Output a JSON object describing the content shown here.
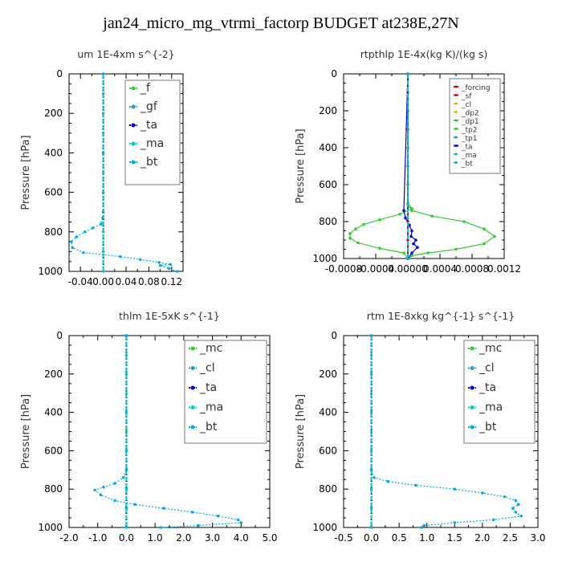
{
  "page_title": "jan24_micro_mg_vtrmi_factorp  BUDGET at238E,27N",
  "chart_data": [
    {
      "type": "line",
      "title": "um  1E-4xm s^{-2}",
      "ylabel": "Pressure [hPa]",
      "xlim": [
        -0.06,
        0.14
      ],
      "ylim": [
        1000,
        0
      ],
      "x_ticks": [
        "-0.04",
        "0.00",
        "0.04",
        "0.08",
        "0.12"
      ],
      "x_tick_values": [
        -0.04,
        0.0,
        0.04,
        0.08,
        0.12
      ],
      "y_ticks": [
        "0",
        "200",
        "400",
        "600",
        "800",
        "1000"
      ],
      "legend_position": "top-right",
      "legend_size": "large",
      "series": [
        {
          "name": "_f",
          "color": "#33cc33",
          "style": "dotted",
          "x": [
            0,
            0,
            0,
            0,
            0,
            0,
            0,
            0,
            0,
            0,
            0
          ],
          "y": [
            0,
            100,
            200,
            300,
            400,
            500,
            600,
            700,
            800,
            900,
            1000
          ]
        },
        {
          "name": "_gf",
          "color": "#3399cc",
          "style": "dotted",
          "x": [
            0,
            0,
            0,
            0,
            0,
            0,
            0,
            0,
            0,
            0,
            0
          ],
          "y": [
            0,
            100,
            200,
            300,
            400,
            500,
            600,
            700,
            800,
            900,
            1000
          ]
        },
        {
          "name": "_ta",
          "color": "#0000dd",
          "style": "dotted",
          "x": [
            0,
            0,
            0,
            0,
            0,
            0,
            0
          ],
          "y": [
            0,
            200,
            400,
            600,
            800,
            900,
            1000
          ]
        },
        {
          "name": "_ma",
          "color": "#00cccc",
          "style": "dash",
          "x": [
            0,
            0,
            0,
            0,
            0,
            0,
            0
          ],
          "y": [
            0,
            200,
            400,
            600,
            800,
            900,
            1000
          ]
        },
        {
          "name": "_bt",
          "color": "#00aaee",
          "style": "dotted",
          "x": [
            0,
            0,
            0,
            -0.001,
            -0.004,
            -0.018,
            -0.032,
            -0.047,
            -0.056,
            -0.054,
            -0.035,
            0.03,
            0.065,
            0.098,
            0.118,
            0.1,
            0.115,
            0.13
          ],
          "y": [
            0,
            400,
            700,
            730,
            760,
            780,
            800,
            825,
            850,
            880,
            905,
            925,
            940,
            955,
            965,
            970,
            985,
            1000
          ]
        }
      ]
    },
    {
      "type": "line",
      "title": "rtpthlp  1E-4x(kg K)/(kg s)",
      "ylabel": "Pressure [hPa]",
      "xlim": [
        -0.0008,
        0.0012
      ],
      "ylim": [
        1000,
        0
      ],
      "x_ticks": [
        "-0.0008",
        "-0.0004",
        "0.00000",
        "0.0004",
        "0.0008",
        "0.0012"
      ],
      "x_tick_values": [
        -0.0008,
        -0.0004,
        0.0,
        0.0004,
        0.0008,
        0.0012
      ],
      "y_ticks": [
        "0",
        "200",
        "400",
        "600",
        "800",
        "1000"
      ],
      "legend_position": "top-right",
      "legend_size": "small",
      "series": [
        {
          "name": "_forcing",
          "color": "#dd0000",
          "style": "solid",
          "x": [
            0,
            0,
            0,
            0,
            0,
            0,
            0,
            0,
            0,
            0,
            0
          ],
          "y": [
            0,
            100,
            200,
            300,
            400,
            500,
            600,
            700,
            800,
            900,
            1000
          ]
        },
        {
          "name": "_sf",
          "color": "#dd0000",
          "style": "solid",
          "x": [
            0,
            0,
            0,
            0,
            0,
            0,
            0,
            0,
            0,
            0,
            0
          ],
          "y": [
            0,
            100,
            200,
            300,
            400,
            500,
            600,
            700,
            800,
            900,
            1000
          ]
        },
        {
          "name": "_cl",
          "color": "#e8b000",
          "style": "dotted",
          "x": [
            0,
            0,
            0
          ],
          "y": [
            0,
            500,
            1000
          ]
        },
        {
          "name": "_dp2",
          "color": "#e8b000",
          "style": "dotted",
          "x": [
            0,
            0,
            0
          ],
          "y": [
            0,
            500,
            1000
          ]
        },
        {
          "name": "_dp1",
          "color": "#33cc33",
          "style": "solid",
          "x": [
            0,
            0,
            5e-05,
            -0.0001,
            -0.00035,
            -0.00055,
            -0.00065,
            -0.00072,
            -0.00072,
            -0.00062,
            -0.00035,
            -5e-05,
            0
          ],
          "y": [
            0,
            700,
            730,
            760,
            790,
            815,
            840,
            865,
            890,
            915,
            945,
            970,
            1000
          ]
        },
        {
          "name": "_tp2",
          "color": "#33cc33",
          "style": "solid",
          "x": [
            0,
            0,
            5e-05,
            0.0003,
            0.0007,
            0.00095,
            0.00108,
            0.00095,
            0.0006,
            0.00025,
            5e-05,
            0
          ],
          "y": [
            0,
            710,
            740,
            770,
            800,
            840,
            880,
            920,
            950,
            970,
            985,
            1000
          ]
        },
        {
          "name": "_tp1",
          "color": "#3399cc",
          "style": "dotted",
          "x": [
            0,
            0,
            0
          ],
          "y": [
            0,
            500,
            1000
          ]
        },
        {
          "name": "_ta",
          "color": "#0000dd",
          "style": "solid",
          "x": [
            0,
            -5e-05,
            -3e-05,
            2e-05,
            5e-05,
            4e-05,
            0.0001,
            7e-05,
            0.00012,
            5e-05,
            0
          ],
          "y": [
            0,
            740,
            780,
            820,
            850,
            880,
            900,
            920,
            940,
            970,
            1000
          ]
        },
        {
          "name": "_ma",
          "color": "#00cccc",
          "style": "dash",
          "x": [
            0,
            0,
            0
          ],
          "y": [
            0,
            500,
            1000
          ]
        },
        {
          "name": "_bt",
          "color": "#00aaee",
          "style": "dotted",
          "x": [
            0,
            0,
            0
          ],
          "y": [
            0,
            500,
            1000
          ]
        }
      ]
    },
    {
      "type": "line",
      "title": "thlm  1E-5xK s^{-1}",
      "ylabel": "Pressure [hPa]",
      "xlim": [
        -2.0,
        5.0
      ],
      "ylim": [
        1000,
        0
      ],
      "x_ticks": [
        "-2.0",
        "-1.0",
        "0.0",
        "1.0",
        "2.0",
        "3.0",
        "4.0",
        "5.0"
      ],
      "x_tick_values": [
        -2.0,
        -1.0,
        0.0,
        1.0,
        2.0,
        3.0,
        4.0,
        5.0
      ],
      "y_ticks": [
        "0",
        "200",
        "400",
        "600",
        "800",
        "1000"
      ],
      "legend_position": "top-right",
      "legend_size": "large",
      "series": [
        {
          "name": "_mc",
          "color": "#33cc33",
          "style": "dotted",
          "x": [
            0,
            0,
            0,
            0,
            0,
            0,
            0,
            0,
            0,
            0,
            0
          ],
          "y": [
            0,
            100,
            200,
            300,
            400,
            500,
            600,
            700,
            800,
            900,
            1000
          ]
        },
        {
          "name": "_cl",
          "color": "#3399cc",
          "style": "dotted",
          "x": [
            0,
            0,
            0,
            0,
            0,
            0,
            0
          ],
          "y": [
            0,
            200,
            400,
            600,
            800,
            900,
            1000
          ]
        },
        {
          "name": "_ta",
          "color": "#0000dd",
          "style": "dotted",
          "x": [
            0,
            0,
            0,
            0,
            0,
            0,
            0
          ],
          "y": [
            0,
            200,
            400,
            600,
            800,
            900,
            1000
          ]
        },
        {
          "name": "_ma",
          "color": "#00cccc",
          "style": "dash",
          "x": [
            0,
            0,
            0,
            0,
            0,
            0,
            0
          ],
          "y": [
            0,
            200,
            400,
            600,
            800,
            900,
            1000
          ]
        },
        {
          "name": "_bt",
          "color": "#00aaee",
          "style": "dotted",
          "x": [
            0,
            0,
            -0.1,
            -0.4,
            -0.8,
            -1.1,
            -0.9,
            -0.4,
            0.3,
            1.3,
            2.3,
            3.2,
            3.9,
            4.0,
            2.5,
            1.2
          ],
          "y": [
            0,
            700,
            740,
            770,
            790,
            805,
            830,
            860,
            880,
            900,
            920,
            940,
            960,
            975,
            990,
            1000
          ]
        }
      ]
    },
    {
      "type": "line",
      "title": "rtm  1E-8xkg kg^{-1} s^{-1}",
      "ylabel": "Pressure [hPa]",
      "xlim": [
        -0.5,
        3.0
      ],
      "ylim": [
        1000,
        0
      ],
      "x_ticks": [
        "-0.5",
        "0.0",
        "0.5",
        "1.0",
        "1.5",
        "2.0",
        "2.5",
        "3.0"
      ],
      "x_tick_values": [
        -0.5,
        0.0,
        0.5,
        1.0,
        1.5,
        2.0,
        2.5,
        3.0
      ],
      "y_ticks": [
        "0",
        "200",
        "400",
        "600",
        "800",
        "1000"
      ],
      "legend_position": "top-right",
      "legend_size": "large",
      "series": [
        {
          "name": "_mc",
          "color": "#33cc33",
          "style": "dotted",
          "x": [
            0,
            0,
            0,
            0,
            0,
            0,
            0,
            0,
            0,
            0,
            0
          ],
          "y": [
            0,
            100,
            200,
            300,
            400,
            500,
            600,
            700,
            800,
            900,
            1000
          ]
        },
        {
          "name": "_cl",
          "color": "#3399cc",
          "style": "dotted",
          "x": [
            0,
            0,
            0,
            0,
            0,
            0,
            0
          ],
          "y": [
            0,
            200,
            400,
            600,
            800,
            900,
            1000
          ]
        },
        {
          "name": "_ta",
          "color": "#0000dd",
          "style": "dotted",
          "x": [
            0,
            0,
            0,
            0,
            0,
            0,
            0
          ],
          "y": [
            0,
            200,
            400,
            600,
            800,
            900,
            1000
          ]
        },
        {
          "name": "_ma",
          "color": "#00cccc",
          "style": "dash",
          "x": [
            0,
            0,
            0,
            0,
            0,
            0,
            0
          ],
          "y": [
            0,
            200,
            400,
            600,
            800,
            900,
            1000
          ]
        },
        {
          "name": "_bt",
          "color": "#00aaee",
          "style": "dotted",
          "x": [
            0,
            0,
            0.05,
            0.3,
            0.8,
            1.5,
            2.0,
            2.4,
            2.6,
            2.65,
            2.55,
            2.6,
            2.7,
            2.2,
            1.5,
            0.95,
            0.9
          ],
          "y": [
            0,
            700,
            740,
            760,
            780,
            800,
            820,
            840,
            860,
            880,
            900,
            920,
            940,
            960,
            975,
            990,
            1000
          ]
        }
      ]
    }
  ]
}
